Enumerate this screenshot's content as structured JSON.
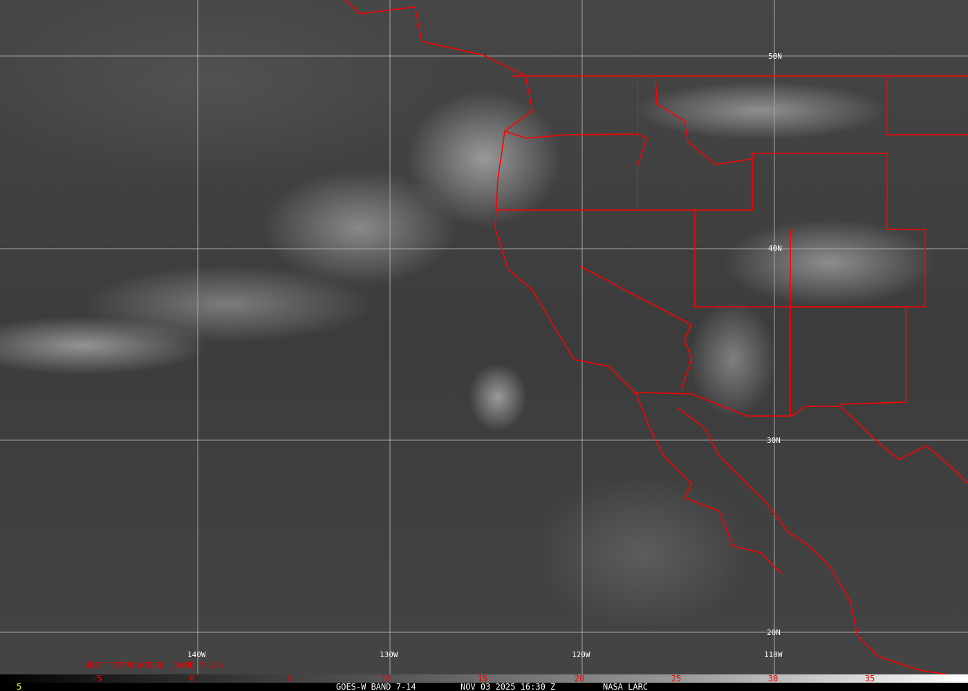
{
  "product_title": "BRIT TEMPERATURE (BAND 7-14)",
  "latitude_labels": [
    "50N",
    "40N",
    "30N",
    "20N"
  ],
  "longitude_labels": [
    "140W",
    "130W",
    "120W",
    "110W"
  ],
  "colorbar": {
    "ticks": [
      "-5",
      "0",
      "5",
      "10",
      "15",
      "20",
      "25",
      "30",
      "35"
    ],
    "tick_color": "#ff0000"
  },
  "footer": {
    "frame_number": "5",
    "satellite_band": "GOES-W BAND 7-14",
    "datetime": "NOV 03 2025 16:30 Z",
    "source": "NASA LARC"
  },
  "colors": {
    "boundaries": "#ff0000",
    "grid": "#b0b0b0",
    "frame_number": "#ffff00"
  }
}
